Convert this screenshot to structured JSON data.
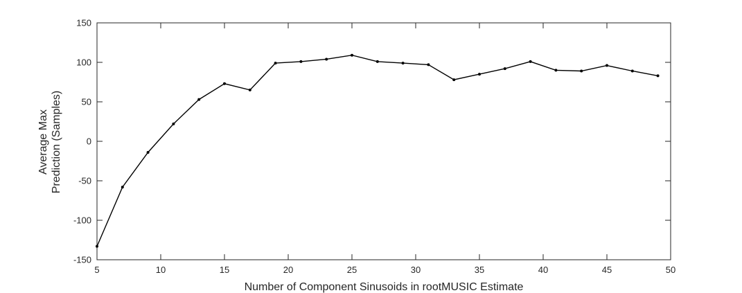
{
  "chart_data": {
    "type": "line",
    "title": "",
    "xlabel": "Number of Component Sinusoids in rootMUSIC Estimate",
    "ylabel_lines": [
      "Average Max",
      "Prediction (Samples)"
    ],
    "xlim": [
      5,
      50
    ],
    "ylim": [
      -150,
      150
    ],
    "xticks": [
      5,
      10,
      15,
      20,
      25,
      30,
      35,
      40,
      45,
      50
    ],
    "yticks": [
      -150,
      -100,
      -50,
      0,
      50,
      100,
      150
    ],
    "grid": false,
    "legend": "none",
    "line_color": "#000000",
    "x": [
      5,
      7,
      9,
      11,
      13,
      15,
      17,
      19,
      21,
      23,
      25,
      27,
      29,
      31,
      33,
      35,
      37,
      39,
      41,
      43,
      45,
      47,
      49
    ],
    "y": [
      -133,
      -58,
      -14,
      22,
      53,
      73,
      65,
      99,
      101,
      104,
      109,
      101,
      99,
      97,
      78,
      85,
      92,
      101,
      90,
      89,
      96,
      89,
      83
    ]
  }
}
